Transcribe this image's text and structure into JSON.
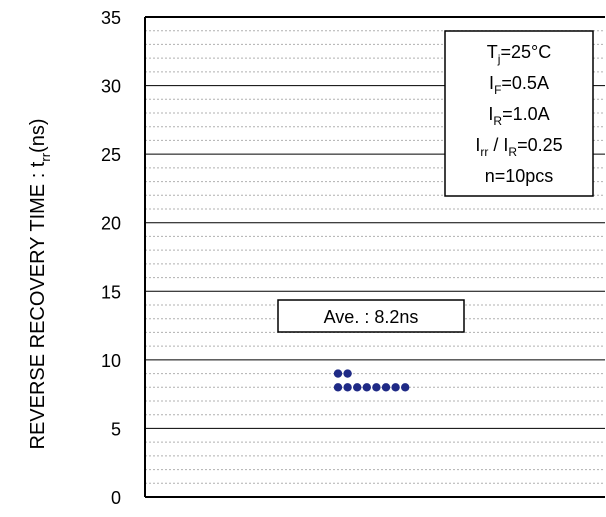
{
  "chart_data": {
    "type": "scatter",
    "ylabel": "REVERSE RECOVERY TIME : t",
    "ylabel_sub": "rr",
    "ylabel_unit": "(ns)",
    "xlabel": "",
    "title": "",
    "ylim": [
      0,
      35
    ],
    "yticks": [
      0,
      5,
      10,
      15,
      20,
      25,
      30,
      35
    ],
    "grid": true,
    "conditions": [
      {
        "main": "T",
        "sub": "j",
        "rest": "=25°C"
      },
      {
        "main": "I",
        "sub": "F",
        "rest": "=0.5A"
      },
      {
        "main": "I",
        "sub": "R",
        "rest": "=1.0A"
      },
      {
        "main": "I",
        "sub": "rr",
        "mid": " / I",
        "sub2": "R",
        "rest": "=0.25"
      },
      {
        "main": "n=10pcs",
        "sub": "",
        "rest": ""
      }
    ],
    "average_label": "Ave. : 8.2ns",
    "points": [
      {
        "y": 9.0
      },
      {
        "y": 9.0
      },
      {
        "y": 8.0
      },
      {
        "y": 8.0
      },
      {
        "y": 8.0
      },
      {
        "y": 8.0
      },
      {
        "y": 8.0
      },
      {
        "y": 8.0
      },
      {
        "y": 8.0
      },
      {
        "y": 8.0
      }
    ],
    "colors": {
      "marker": "#1f2a86",
      "axis": "#000000",
      "grid_major": "#000000",
      "grid_minor": "#b0b0b0"
    }
  }
}
